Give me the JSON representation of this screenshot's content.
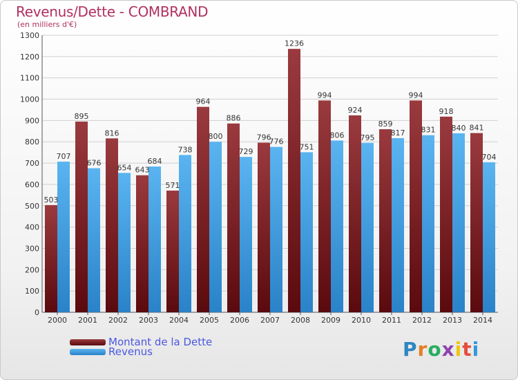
{
  "header": {
    "title": "Revenus/Dette - COMBRAND",
    "subtitle": "(en milliers d'€)"
  },
  "chart_data": {
    "type": "bar",
    "categories": [
      "2000",
      "2001",
      "2002",
      "2003",
      "2004",
      "2005",
      "2006",
      "2007",
      "2008",
      "2009",
      "2010",
      "2011",
      "2012",
      "2013",
      "2014"
    ],
    "series": [
      {
        "name": "Montant de la Dette",
        "color": "#7a1f22",
        "values": [
          503,
          895,
          816,
          643,
          571,
          964,
          886,
          796,
          1236,
          994,
          924,
          859,
          994,
          918,
          841
        ]
      },
      {
        "name": "Revenus",
        "color": "#3fa0e6",
        "values": [
          707,
          676,
          654,
          684,
          738,
          800,
          729,
          776,
          751,
          806,
          795,
          817,
          831,
          840,
          704
        ]
      }
    ],
    "ylim": [
      0,
      1300
    ],
    "yticks": [
      0,
      100,
      200,
      300,
      400,
      500,
      600,
      700,
      800,
      900,
      1000,
      1100,
      1200,
      1300
    ],
    "grid": true,
    "legend_position": "bottom-left"
  },
  "legend": {
    "items": [
      {
        "label": "Montant de la Dette",
        "color": "#7a1f22"
      },
      {
        "label": "Revenus",
        "color": "#3fa0e6"
      }
    ]
  },
  "logo": {
    "letters": [
      {
        "ch": "P",
        "color": "#2e86c1"
      },
      {
        "ch": "r",
        "color": "#e67e22"
      },
      {
        "ch": "o",
        "color": "#27ae60"
      },
      {
        "ch": "x",
        "color": "#8e44ad"
      },
      {
        "ch": "i",
        "color": "#f1c40f"
      },
      {
        "ch": "t",
        "color": "#e74c3c"
      },
      {
        "ch": "i",
        "color": "#3498db"
      }
    ]
  }
}
